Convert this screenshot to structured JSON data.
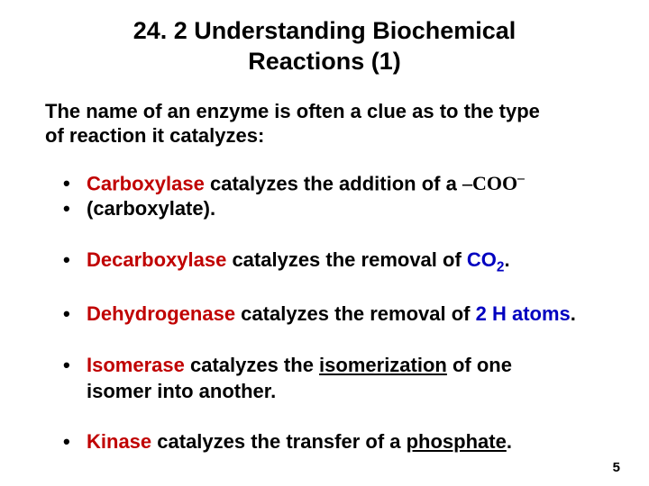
{
  "title_fontsize": 27,
  "body_fontsize": 22,
  "pagenum_fontsize": 15,
  "colors": {
    "enzyme": "#c00000",
    "product": "#0000c0",
    "text": "#000000",
    "background": "#ffffff"
  },
  "title_line1": "24. 2 Understanding Biochemical",
  "title_line2": "Reactions (1)",
  "intro_line1": "The name of an enzyme is often a clue as to the type",
  "intro_line2": "of reaction it catalyzes:",
  "bullet_symbol": "•",
  "enz1": "Carboxylase",
  "b1_mid": " catalyzes the addition of a ",
  "b1_formula_prefix": "–",
  "b1_formula": "COO",
  "b1_formula_sup": "–",
  "b2_text": "(carboxylate).",
  "enz2": "Decarboxylase",
  "b3_mid": " catalyzes the removal of ",
  "b3_product_main": "CO",
  "b3_product_sub": "2",
  "b3_end": ".",
  "enz3": "Dehydrogenase",
  "b4_mid": " catalyzes the removal of ",
  "b4_product": "2 H atoms",
  "b4_end": ".",
  "enz4": "Isomerase",
  "b5_mid1": " catalyzes the ",
  "b5_ul": "isomerization",
  "b5_mid2": " of one",
  "b5_line2": "isomer into another.",
  "enz5": "Kinase",
  "b6_mid": " catalyzes the transfer of a ",
  "b6_ul": "phosphate",
  "b6_end": ".",
  "pagenum": "5"
}
